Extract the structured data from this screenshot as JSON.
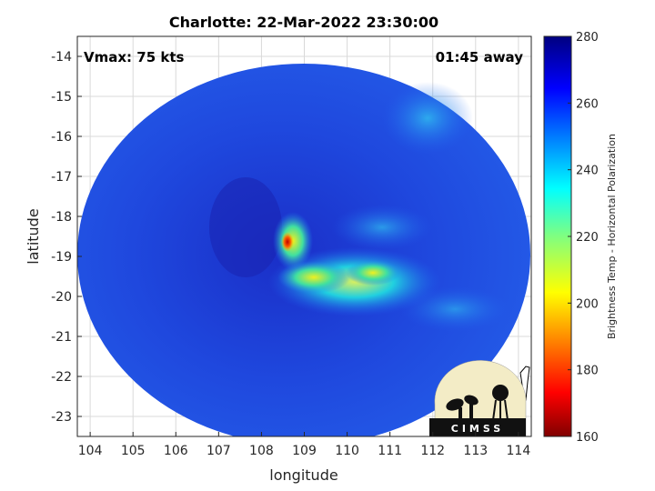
{
  "title": "Charlotte: 22-Mar-2022 23:30:00",
  "annotations": {
    "vmax": "Vmax: 75 kts",
    "time_away": "01:45 away"
  },
  "xaxis": {
    "label": "longitude",
    "range": [
      103.7,
      114.3
    ],
    "ticks": [
      104,
      105,
      106,
      107,
      108,
      109,
      110,
      111,
      112,
      113,
      114
    ]
  },
  "yaxis": {
    "label": "latitude",
    "range": [
      -23.5,
      -13.5
    ],
    "ticks": [
      -14,
      -15,
      -16,
      -17,
      -18,
      -19,
      -20,
      -21,
      -22,
      -23
    ]
  },
  "colorbar": {
    "label": "Brightness Temp - Horizontal Polarization",
    "range": [
      160,
      280
    ],
    "ticks": [
      280,
      260,
      240,
      220,
      200,
      180,
      160
    ],
    "colormap": "jet"
  },
  "logo": {
    "text": "CIMSS"
  },
  "colors": {
    "background_field": "#1f45d8",
    "grid": "#d9d9d9",
    "axis": "#262626"
  }
}
